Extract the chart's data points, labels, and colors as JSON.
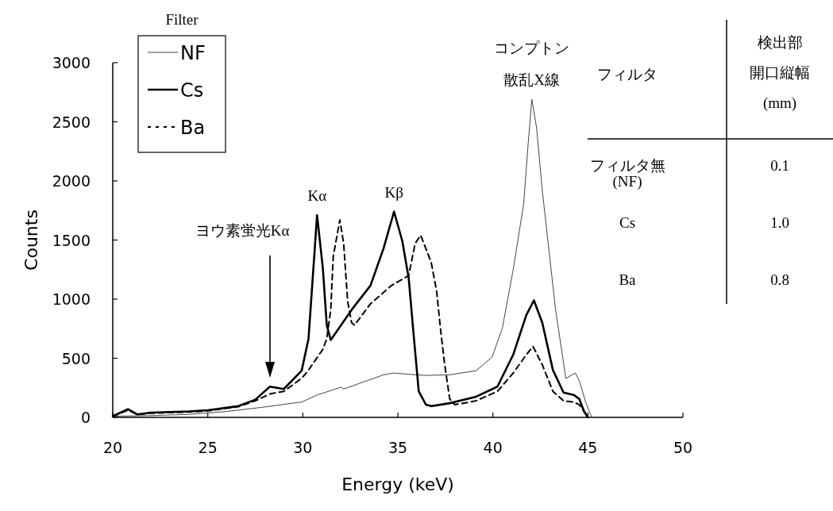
{
  "chart_data": {
    "type": "line",
    "xlabel": "Energy (keV)",
    "ylabel": "Counts",
    "legend_title": "Filter",
    "legend": "top left",
    "xlim": [
      20,
      50
    ],
    "xticks": [
      20,
      25,
      30,
      35,
      40,
      45,
      50
    ],
    "ylim": [
      0,
      3000
    ],
    "yticks": [
      0,
      500,
      1000,
      1500,
      2000,
      2500,
      3000
    ],
    "grid": false,
    "series": [
      {
        "name": "NF",
        "color": "#444444",
        "line_style": "solid",
        "x": [
          20,
          22,
          24,
          26,
          27.85,
          29.94,
          30.77,
          32.0,
          32.15,
          34.25,
          34.77,
          36.4,
          37.73,
          39.12,
          39.96,
          40.5,
          41.07,
          41.62,
          41.85,
          42.05,
          42.3,
          42.6,
          43.3,
          43.84,
          44.34,
          44.55,
          44.9,
          45.2
        ],
        "values": [
          10,
          15,
          25,
          50,
          85,
          130,
          190,
          255,
          240,
          360,
          375,
          355,
          360,
          395,
          510,
          755,
          1250,
          1805,
          2300,
          2690,
          2450,
          1920,
          910,
          330,
          375,
          310,
          120,
          0
        ]
      },
      {
        "name": "Cs",
        "color": "#000000",
        "line_style": "solid",
        "x": [
          20,
          20.8,
          21.3,
          22,
          24,
          25,
          26.6,
          27.5,
          28.27,
          29.0,
          29.94,
          30.3,
          30.6,
          30.75,
          31.05,
          31.26,
          31.47,
          32.57,
          33.56,
          34.25,
          34.8,
          35.23,
          35.57,
          35.85,
          36.1,
          36.48,
          36.75,
          37.73,
          39.12,
          40.24,
          41.07,
          41.76,
          42.16,
          42.6,
          43.16,
          43.72,
          44.26,
          44.55,
          44.8,
          45.0
        ],
        "values": [
          10,
          70,
          25,
          40,
          50,
          60,
          95,
          150,
          260,
          240,
          395,
          665,
          1360,
          1710,
          1270,
          780,
          655,
          910,
          1115,
          1430,
          1740,
          1495,
          1180,
          665,
          220,
          107,
          95,
          120,
          175,
          260,
          530,
          865,
          990,
          800,
          400,
          210,
          190,
          155,
          50,
          0
        ]
      },
      {
        "name": "Ba",
        "color": "#000000",
        "line_style": "dashed",
        "x": [
          20,
          20.8,
          21.3,
          22,
          24,
          25,
          26.6,
          27.5,
          28.3,
          29.0,
          29.94,
          30.3,
          31.05,
          31.26,
          31.47,
          31.6,
          31.95,
          32.15,
          32.36,
          32.57,
          32.72,
          33.56,
          34.66,
          35.57,
          35.91,
          36.2,
          36.75,
          37.04,
          37.24,
          37.45,
          37.73,
          38.0,
          39.12,
          40.24,
          41.07,
          41.76,
          42.11,
          42.6,
          43.16,
          43.72,
          44.26,
          44.55,
          44.8,
          45.0
        ],
        "values": [
          10,
          60,
          25,
          35,
          45,
          55,
          90,
          140,
          200,
          220,
          330,
          400,
          575,
          665,
          910,
          1360,
          1670,
          1470,
          980,
          800,
          780,
          960,
          1115,
          1200,
          1470,
          1540,
          1315,
          1070,
          755,
          465,
          155,
          107,
          140,
          220,
          375,
          530,
          600,
          445,
          220,
          140,
          130,
          107,
          50,
          0
        ]
      }
    ],
    "annotations": [
      {
        "text": "Kα",
        "x": 30.75,
        "y": 1710
      },
      {
        "text": "Kβ",
        "x": 34.8,
        "y": 1740
      },
      {
        "text": "コンプトン",
        "x": 42.05,
        "y": 2690
      },
      "散乱X線",
      "ヨウ素蛍光Kα",
      "フィルタ",
      "検出部",
      "開口縦幅",
      "(mm)",
      "フィルタ無\n(NF)",
      "0.1",
      "Cs",
      "1.0",
      "Ba",
      "0.8"
    ]
  }
}
